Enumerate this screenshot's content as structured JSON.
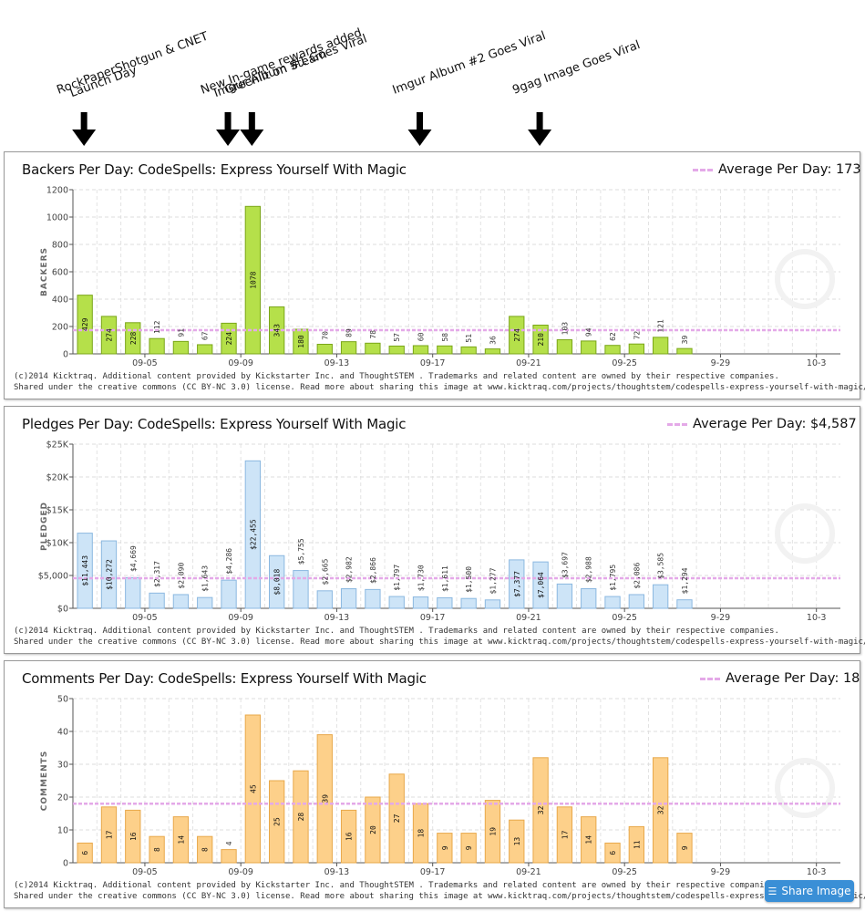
{
  "annotations": [
    {
      "lines": [
        "Launch Day",
        "RockPaperShotgun & CNET"
      ],
      "day": 0
    },
    {
      "lines": [
        "Imgur Album #1 Goes Viral",
        "New In-game rewards added"
      ],
      "day": 6
    },
    {
      "lines": [
        "Greenlit on Steam"
      ],
      "day": 7
    },
    {
      "lines": [
        "Imgur Album #2 Goes Viral"
      ],
      "day": 14
    },
    {
      "lines": [
        "9gag Image Goes Viral"
      ],
      "day": 19
    }
  ],
  "credit": {
    "line1": "(c)2014 Kicktraq. Additional content provided by Kickstarter Inc. and  ThoughtSTEM . Trademarks and related content are owned by their respective companies.",
    "line2": "Shared under the creative commons (CC BY-NC 3.0) license. Read more about sharing this image at www.kicktraq.com/projects/thoughtstem/codespells-express-yourself-with-magic/#sharing"
  },
  "share_button": {
    "label": "Share Image",
    "icon": "layers-icon"
  },
  "avg_label": "Average Per Day:",
  "chart_data": [
    {
      "type": "bar",
      "title": "Backers Per Day: CodeSpells: Express Yourself With Magic",
      "ylabel": "BACKERS",
      "average": {
        "label": "Average Per Day: 173",
        "value": 173
      },
      "ylim": [
        0,
        1200
      ],
      "yticks": [
        0,
        200,
        400,
        600,
        800,
        1000,
        1200
      ],
      "ytick_labels": [
        "0",
        "200",
        "400",
        "600",
        "800",
        "1000",
        "1200"
      ],
      "xtick_labels": [
        "09-05",
        "09-09",
        "09-13",
        "09-17",
        "09-21",
        "09-25",
        "9-29",
        "10-3"
      ],
      "values": [
        429,
        274,
        228,
        112,
        91,
        67,
        224,
        1078,
        343,
        180,
        70,
        89,
        78,
        57,
        60,
        58,
        51,
        36,
        274,
        210,
        103,
        94,
        62,
        72,
        121,
        39
      ],
      "data_labels": [
        "429",
        "274",
        "228",
        "112",
        "91",
        "67",
        "224",
        "1078",
        "343",
        "180",
        "70",
        "89",
        "78",
        "57",
        "60",
        "58",
        "51",
        "36",
        "274",
        "210",
        "103",
        "94",
        "62",
        "72",
        "121",
        "39"
      ],
      "colors": {
        "fill": "#b5e04a",
        "stroke": "#7aa618",
        "avg": "#e4a9e8"
      }
    },
    {
      "type": "bar",
      "title": "Pledges Per Day: CodeSpells: Express Yourself With Magic",
      "ylabel": "PLEDGED",
      "average": {
        "label": "Average Per Day:  $4,587",
        "value": 4587
      },
      "ylim": [
        0,
        25000
      ],
      "yticks": [
        0,
        5000,
        10000,
        15000,
        20000,
        25000
      ],
      "ytick_labels": [
        "$0",
        "$5,000",
        "$10K",
        "$15K",
        "$20K",
        "$25K"
      ],
      "xtick_labels": [
        "09-05",
        "09-09",
        "09-13",
        "09-17",
        "09-21",
        "09-25",
        "9-29",
        "10-3"
      ],
      "values": [
        11443,
        10272,
        4669,
        2317,
        2090,
        1643,
        4286,
        22455,
        8018,
        5755,
        2665,
        2982,
        2866,
        1797,
        1730,
        1611,
        1500,
        1277,
        7377,
        7064,
        3697,
        2988,
        1795,
        2086,
        3585,
        1294
      ],
      "data_labels": [
        "$11,443",
        "$10,272",
        "$4,669",
        "$2,317",
        "$2,090",
        "$1,643",
        "$4,286",
        "$22,455",
        "$8,018",
        "$5,755",
        "$2,665",
        "$2,982",
        "$2,866",
        "$1,797",
        "$1,730",
        "$1,611",
        "$1,500",
        "$1,277",
        "$7,377",
        "$7,064",
        "$3,697",
        "$2,988",
        "$1,795",
        "$2,086",
        "$3,585",
        "$1,294"
      ],
      "colors": {
        "fill": "#cde4f7",
        "stroke": "#8bb8e0",
        "avg": "#e4a9e8"
      }
    },
    {
      "type": "bar",
      "title": "Comments Per Day: CodeSpells: Express Yourself With Magic",
      "ylabel": "COMMENTS",
      "average": {
        "label": "Average Per Day: 18",
        "value": 18
      },
      "ylim": [
        0,
        50
      ],
      "yticks": [
        0,
        10,
        20,
        30,
        40,
        50
      ],
      "ytick_labels": [
        "0",
        "10",
        "20",
        "30",
        "40",
        "50"
      ],
      "xtick_labels": [
        "09-05",
        "09-09",
        "09-13",
        "09-17",
        "09-21",
        "09-25",
        "9-29",
        "10-3"
      ],
      "values": [
        6,
        17,
        16,
        8,
        14,
        8,
        4,
        45,
        25,
        28,
        39,
        16,
        20,
        27,
        18,
        9,
        9,
        19,
        13,
        32,
        17,
        14,
        6,
        11,
        32,
        9
      ],
      "data_labels": [
        "6",
        "17",
        "16",
        "8",
        "14",
        "8",
        "4",
        "45",
        "25",
        "28",
        "39",
        "16",
        "20",
        "27",
        "18",
        "9",
        "9",
        "19",
        "13",
        "32",
        "17",
        "14",
        "6",
        "11",
        "32",
        "9"
      ],
      "colors": {
        "fill": "#fdd08a",
        "stroke": "#e8a84a",
        "avg": "#e4a9e8"
      }
    }
  ]
}
